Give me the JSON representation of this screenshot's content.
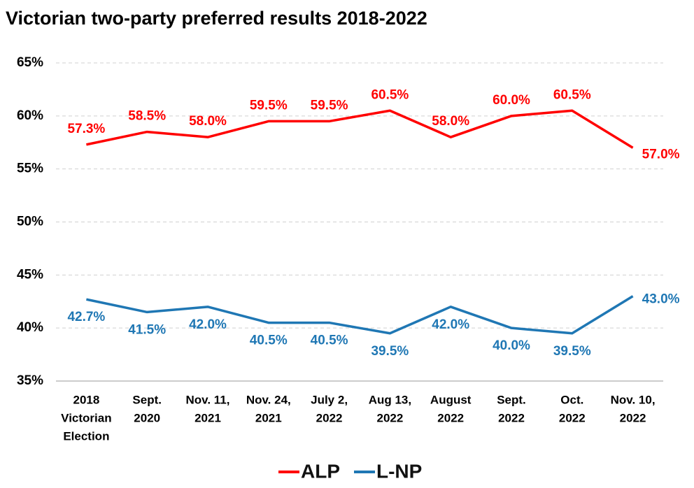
{
  "chart_data": {
    "type": "line",
    "title": "Victorian two-party preferred results 2018-2022",
    "categories": [
      [
        "2018",
        "Victorian",
        "Election"
      ],
      [
        "Sept.",
        "2020"
      ],
      [
        "Nov. 11,",
        "2021"
      ],
      [
        "Nov. 24,",
        "2021"
      ],
      [
        "July 2,",
        "2022"
      ],
      [
        "Aug 13,",
        "2022"
      ],
      [
        "August",
        "2022"
      ],
      [
        "Sept.",
        "2022"
      ],
      [
        "Oct.",
        "2022"
      ],
      [
        "Nov. 10,",
        "2022"
      ]
    ],
    "series": [
      {
        "name": "ALP",
        "color": "#ff0000",
        "values": [
          57.3,
          58.5,
          58.0,
          59.5,
          59.5,
          60.5,
          58.0,
          60.0,
          60.5,
          57.0
        ],
        "value_labels": [
          "57.3%",
          "58.5%",
          "58.0%",
          "59.5%",
          "59.5%",
          "60.5%",
          "58.0%",
          "60.0%",
          "60.5%",
          "57.0%"
        ]
      },
      {
        "name": "L-NP",
        "color": "#1f77b4",
        "values": [
          42.7,
          41.5,
          42.0,
          40.5,
          40.5,
          39.5,
          42.0,
          40.0,
          39.5,
          43.0
        ],
        "value_labels": [
          "42.7%",
          "41.5%",
          "42.0%",
          "40.5%",
          "40.5%",
          "39.5%",
          "42.0%",
          "40.0%",
          "39.5%",
          "43.0%"
        ]
      }
    ],
    "ylim": [
      35,
      65
    ],
    "yticks": [
      {
        "value": 35,
        "label": "35%"
      },
      {
        "value": 40,
        "label": "40%"
      },
      {
        "value": 45,
        "label": "45%"
      },
      {
        "value": 50,
        "label": "50%"
      },
      {
        "value": 55,
        "label": "55%"
      },
      {
        "value": 60,
        "label": "60%"
      },
      {
        "value": 65,
        "label": "65%"
      }
    ],
    "grid": true,
    "legend": "bottom"
  }
}
